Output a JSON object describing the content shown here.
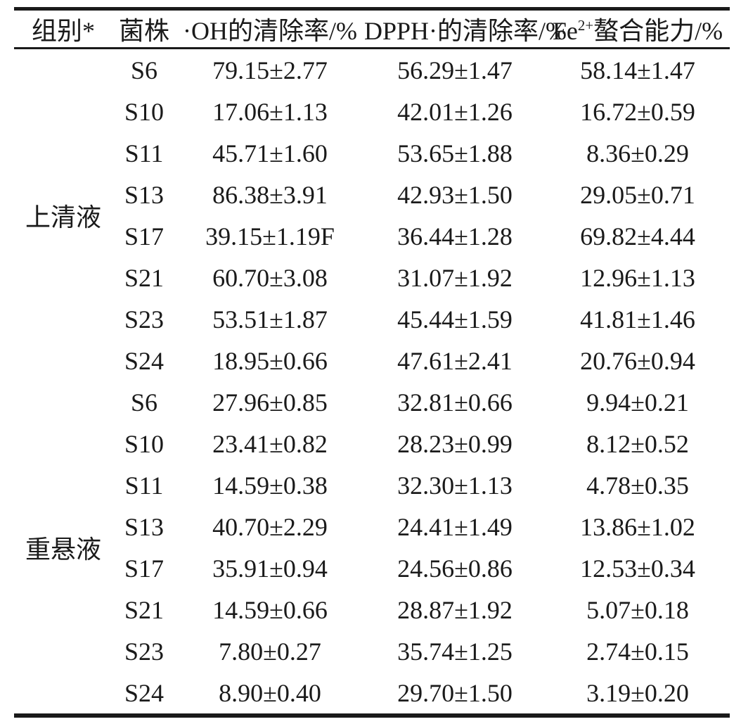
{
  "table": {
    "columns": {
      "group": "组别*",
      "strain": "菌株",
      "oh": "·OH的清除率/%",
      "dpph": "DPPH·的清除率/%",
      "fe_pre": "Fe",
      "fe_sup": "2+",
      "fe_post": "螯合能力/%"
    },
    "groups": [
      {
        "label": "上清液",
        "rows": [
          {
            "strain": "S6",
            "oh": "79.15±2.77",
            "dpph": "56.29±1.47",
            "fe": "58.14±1.47"
          },
          {
            "strain": "S10",
            "oh": "17.06±1.13",
            "dpph": "42.01±1.26",
            "fe": "16.72±0.59"
          },
          {
            "strain": "S11",
            "oh": "45.71±1.60",
            "dpph": "53.65±1.88",
            "fe": "8.36±0.29"
          },
          {
            "strain": "S13",
            "oh": "86.38±3.91",
            "dpph": "42.93±1.50",
            "fe": "29.05±0.71"
          },
          {
            "strain": "S17",
            "oh": "39.15±1.19F",
            "dpph": "36.44±1.28",
            "fe": "69.82±4.44"
          },
          {
            "strain": "S21",
            "oh": "60.70±3.08",
            "dpph": "31.07±1.92",
            "fe": "12.96±1.13"
          },
          {
            "strain": "S23",
            "oh": "53.51±1.87",
            "dpph": "45.44±1.59",
            "fe": "41.81±1.46"
          },
          {
            "strain": "S24",
            "oh": "18.95±0.66",
            "dpph": "47.61±2.41",
            "fe": "20.76±0.94"
          }
        ]
      },
      {
        "label": "重悬液",
        "rows": [
          {
            "strain": "S6",
            "oh": "27.96±0.85",
            "dpph": "32.81±0.66",
            "fe": "9.94±0.21"
          },
          {
            "strain": "S10",
            "oh": "23.41±0.82",
            "dpph": "28.23±0.99",
            "fe": "8.12±0.52"
          },
          {
            "strain": "S11",
            "oh": "14.59±0.38",
            "dpph": "32.30±1.13",
            "fe": "4.78±0.35"
          },
          {
            "strain": "S13",
            "oh": "40.70±2.29",
            "dpph": "24.41±1.49",
            "fe": "13.86±1.02"
          },
          {
            "strain": "S17",
            "oh": "35.91±0.94",
            "dpph": "24.56±0.86",
            "fe": "12.53±0.34"
          },
          {
            "strain": "S21",
            "oh": "14.59±0.66",
            "dpph": "28.87±1.92",
            "fe": "5.07±0.18"
          },
          {
            "strain": "S23",
            "oh": "7.80±0.27",
            "dpph": "35.74±1.25",
            "fe": "2.74±0.15"
          },
          {
            "strain": "S24",
            "oh": "8.90±0.40",
            "dpph": "29.70±1.50",
            "fe": "3.19±0.20"
          }
        ]
      }
    ],
    "colors": {
      "text": "#1a1a1a",
      "rule": "#1a1a1a",
      "background": "#ffffff"
    }
  }
}
